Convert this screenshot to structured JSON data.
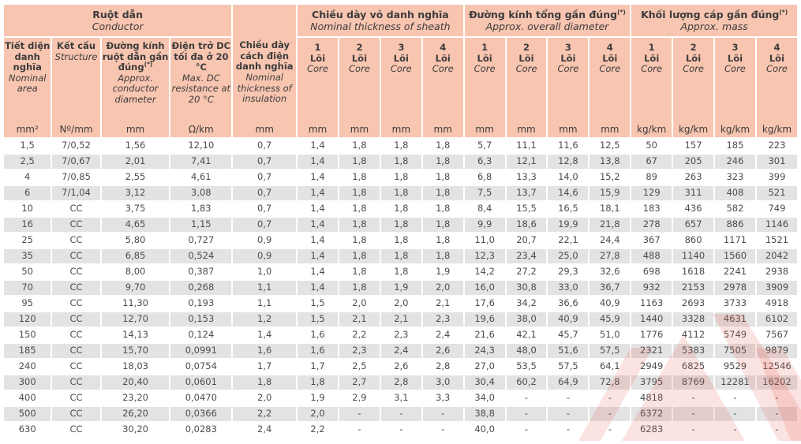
{
  "colors": {
    "header_bg": "#f8c5b0",
    "row_stripe": "#e3e3e3",
    "watermark_red": "#e0584d",
    "text_header": "#3c3c3c",
    "text_data": "#4d4d4d"
  },
  "header": {
    "groups": {
      "conductor": {
        "vi": "Ruột dẫn",
        "en": "Conductor"
      },
      "sheath": {
        "vi": "Chiều dày vỏ danh nghĩa",
        "en": "Nominal thickness of sheath"
      },
      "diameter": {
        "vi": "Đường kính tổng gần đúng",
        "sup": "(*)",
        "en": "Approx. overall diameter"
      },
      "mass": {
        "vi": "Khối lượng cáp gần đúng",
        "sup": "(*)",
        "en": "Approx. mass"
      }
    },
    "insulation": {
      "vi": "Chiều dày cách điện danh nghĩa",
      "en": "Nominal thickness of insulation",
      "unit": "mm"
    },
    "conductor_cols": [
      {
        "vi": "Tiết diện danh nghĩa",
        "en": "Nominal area",
        "unit": "mm²"
      },
      {
        "vi": "Kết cấu",
        "en": "Structure",
        "unit": "Nº/mm"
      },
      {
        "vi": "Đường kính ruột dẫn gần đúng",
        "sup": "(*)",
        "en": "Approx. conductor diameter",
        "unit": "mm"
      },
      {
        "vi": "Điện trở DC tối đa ở 20 °C",
        "en": "Max. DC resistance at 20 °C",
        "unit": "Ω/km"
      }
    ],
    "core_cols": [
      {
        "num": "1",
        "vi": "Lõi",
        "en": "Core",
        "unit": "mm"
      },
      {
        "num": "2",
        "vi": "Lõi",
        "en": "Core",
        "unit": "mm"
      },
      {
        "num": "3",
        "vi": "Lõi",
        "en": "Core",
        "unit": "mm"
      },
      {
        "num": "4",
        "vi": "Lõi",
        "en": "Core",
        "unit": "mm"
      },
      {
        "num": "1",
        "vi": "Lõi",
        "en": "Core",
        "unit": "mm"
      },
      {
        "num": "2",
        "vi": "Lõi",
        "en": "Core",
        "unit": "mm"
      },
      {
        "num": "3",
        "vi": "Lõi",
        "en": "Core",
        "unit": "mm"
      },
      {
        "num": "4",
        "vi": "Lõi",
        "en": "Core",
        "unit": "mm"
      },
      {
        "num": "1",
        "vi": "Lõi",
        "en": "Core",
        "unit": "kg/km"
      },
      {
        "num": "2",
        "vi": "Lõi",
        "en": "Core",
        "unit": "kg/km"
      },
      {
        "num": "3",
        "vi": "Lõi",
        "en": "Core",
        "unit": "kg/km"
      },
      {
        "num": "4",
        "vi": "Lõi",
        "en": "Core",
        "unit": "kg/km"
      }
    ]
  },
  "rows": [
    [
      "1,5",
      "7/0,52",
      "1,56",
      "12,10",
      "0,7",
      "1,4",
      "1,8",
      "1,8",
      "1,8",
      "5,7",
      "11,1",
      "11,6",
      "12,5",
      "50",
      "157",
      "185",
      "223"
    ],
    [
      "2,5",
      "7/0,67",
      "2,01",
      "7,41",
      "0,7",
      "1,4",
      "1,8",
      "1,8",
      "1,8",
      "6,3",
      "12,1",
      "12,8",
      "13,8",
      "67",
      "205",
      "246",
      "301"
    ],
    [
      "4",
      "7/0,85",
      "2,55",
      "4,61",
      "0,7",
      "1,4",
      "1,8",
      "1,8",
      "1,8",
      "6,8",
      "13,3",
      "14,0",
      "15,2",
      "89",
      "263",
      "323",
      "399"
    ],
    [
      "6",
      "7/1,04",
      "3,12",
      "3,08",
      "0,7",
      "1,4",
      "1,8",
      "1,8",
      "1,8",
      "7,5",
      "13,7",
      "14,6",
      "15,9",
      "129",
      "311",
      "408",
      "521"
    ],
    [
      "10",
      "CC",
      "3,75",
      "1,83",
      "0,7",
      "1,4",
      "1,8",
      "1,8",
      "1,8",
      "8,4",
      "15,5",
      "16,5",
      "18,1",
      "183",
      "436",
      "582",
      "749"
    ],
    [
      "16",
      "CC",
      "4,65",
      "1,15",
      "0,7",
      "1,4",
      "1,8",
      "1,8",
      "1,8",
      "9,9",
      "18,6",
      "19,9",
      "21,8",
      "278",
      "657",
      "886",
      "1146"
    ],
    [
      "25",
      "CC",
      "5,80",
      "0,727",
      "0,9",
      "1,4",
      "1,8",
      "1,8",
      "1,8",
      "11,0",
      "20,7",
      "22,1",
      "24,4",
      "367",
      "860",
      "1171",
      "1521"
    ],
    [
      "35",
      "CC",
      "6,85",
      "0,524",
      "0,9",
      "1,4",
      "1,8",
      "1,8",
      "1,8",
      "12,3",
      "23,4",
      "25,0",
      "27,8",
      "488",
      "1140",
      "1560",
      "2042"
    ],
    [
      "50",
      "CC",
      "8,00",
      "0,387",
      "1,0",
      "1,4",
      "1,8",
      "1,8",
      "1,9",
      "14,2",
      "27,2",
      "29,3",
      "32,6",
      "698",
      "1618",
      "2241",
      "2938"
    ],
    [
      "70",
      "CC",
      "9,70",
      "0,268",
      "1,1",
      "1,4",
      "1,8",
      "1,9",
      "2,0",
      "16,0",
      "30,8",
      "33,0",
      "36,7",
      "932",
      "2153",
      "2978",
      "3909"
    ],
    [
      "95",
      "CC",
      "11,30",
      "0,193",
      "1,1",
      "1,5",
      "2,0",
      "2,0",
      "2,1",
      "17,6",
      "34,2",
      "36,6",
      "40,9",
      "1163",
      "2693",
      "3733",
      "4918"
    ],
    [
      "120",
      "CC",
      "12,70",
      "0,153",
      "1,2",
      "1,5",
      "2,1",
      "2,1",
      "2,3",
      "19,6",
      "38,0",
      "40,9",
      "45,9",
      "1440",
      "3328",
      "4631",
      "6102"
    ],
    [
      "150",
      "CC",
      "14,13",
      "0,124",
      "1,4",
      "1,6",
      "2,2",
      "2,3",
      "2,4",
      "21,6",
      "42,1",
      "45,7",
      "51,0",
      "1776",
      "4112",
      "5749",
      "7567"
    ],
    [
      "185",
      "CC",
      "15,70",
      "0,0991",
      "1,6",
      "1,6",
      "2,3",
      "2,4",
      "2,6",
      "24,3",
      "48,0",
      "51,6",
      "57,5",
      "2321",
      "5383",
      "7505",
      "9879"
    ],
    [
      "240",
      "CC",
      "18,03",
      "0,0754",
      "1,7",
      "1,7",
      "2,5",
      "2,6",
      "2,8",
      "27,0",
      "53,5",
      "57,5",
      "64,1",
      "2949",
      "6825",
      "9529",
      "12546"
    ],
    [
      "300",
      "CC",
      "20,40",
      "0,0601",
      "1,8",
      "1,8",
      "2,7",
      "2,8",
      "3,0",
      "30,4",
      "60,2",
      "64,9",
      "72,8",
      "3795",
      "8769",
      "12281",
      "16202"
    ],
    [
      "400",
      "CC",
      "23,20",
      "0,0470",
      "2,0",
      "1,9",
      "2,9",
      "3,1",
      "3,3",
      "34,0",
      "-",
      "-",
      "-",
      "4818",
      "-",
      "-",
      "-"
    ],
    [
      "500",
      "CC",
      "26,20",
      "0,0366",
      "2,2",
      "2,0",
      "-",
      "-",
      "-",
      "38,8",
      "-",
      "-",
      "-",
      "6372",
      "-",
      "-",
      "-"
    ],
    [
      "630",
      "CC",
      "30,20",
      "0,0283",
      "2,4",
      "2,2",
      "-",
      "-",
      "-",
      "40,0",
      "-",
      "-",
      "-",
      "6283",
      "-",
      "-",
      "-"
    ]
  ]
}
